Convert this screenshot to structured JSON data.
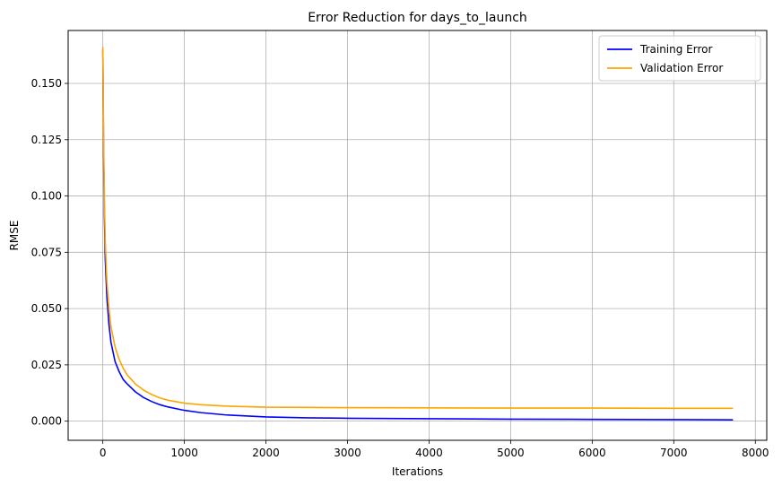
{
  "chart_data": {
    "type": "line",
    "title": "Error Reduction for days_to_launch",
    "xlabel": "Iterations",
    "ylabel": "RMSE",
    "xlim": [
      -425,
      8140
    ],
    "ylim": [
      -0.0085,
      0.1735
    ],
    "x_ticks": [
      0,
      1000,
      2000,
      3000,
      4000,
      5000,
      6000,
      7000,
      8000
    ],
    "y_ticks": [
      0.0,
      0.025,
      0.05,
      0.075,
      0.1,
      0.125,
      0.15
    ],
    "x_tick_labels": [
      "0",
      "1000",
      "2000",
      "3000",
      "4000",
      "5000",
      "6000",
      "7000",
      "8000"
    ],
    "y_tick_labels": [
      "0.000",
      "0.025",
      "0.050",
      "0.075",
      "0.100",
      "0.125",
      "0.150"
    ],
    "grid": true,
    "legend_position": "upper-right",
    "series": [
      {
        "name": "Training Error",
        "color": "#0000ff",
        "x": [
          0,
          5,
          10,
          20,
          30,
          50,
          75,
          100,
          150,
          200,
          250,
          300,
          400,
          500,
          600,
          700,
          800,
          1000,
          1200,
          1500,
          2000,
          2500,
          3000,
          4000,
          5000,
          6000,
          7000,
          7720
        ],
        "y": [
          0.165,
          0.14,
          0.118,
          0.09,
          0.072,
          0.055,
          0.043,
          0.035,
          0.0265,
          0.022,
          0.0185,
          0.0165,
          0.013,
          0.0105,
          0.0087,
          0.0073,
          0.0063,
          0.0048,
          0.0038,
          0.0028,
          0.0019,
          0.0015,
          0.0013,
          0.0011,
          0.0009,
          0.0008,
          0.0007,
          0.0006
        ]
      },
      {
        "name": "Validation Error",
        "color": "#ffa500",
        "x": [
          0,
          5,
          10,
          20,
          30,
          50,
          75,
          100,
          150,
          200,
          250,
          300,
          400,
          500,
          600,
          700,
          800,
          1000,
          1200,
          1500,
          2000,
          2500,
          3000,
          4000,
          5000,
          6000,
          7000,
          7720
        ],
        "y": [
          0.166,
          0.145,
          0.125,
          0.098,
          0.08,
          0.062,
          0.05,
          0.042,
          0.033,
          0.0275,
          0.0235,
          0.0205,
          0.0165,
          0.0138,
          0.0118,
          0.0103,
          0.0093,
          0.008,
          0.0073,
          0.0067,
          0.0062,
          0.0061,
          0.006,
          0.0059,
          0.0058,
          0.0058,
          0.0057,
          0.0057
        ]
      }
    ]
  }
}
